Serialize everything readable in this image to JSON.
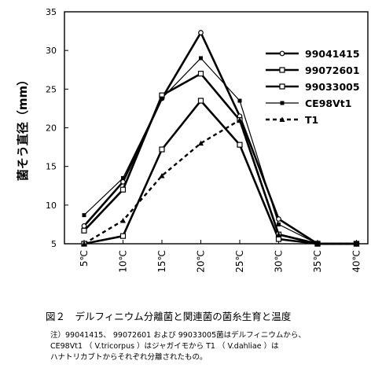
{
  "chart_data": {
    "type": "line",
    "ylabel": "菌そう直径（mm）",
    "categories": [
      "5℃",
      "10℃",
      "15℃",
      "20℃",
      "25℃",
      "30℃",
      "35℃",
      "40℃"
    ],
    "ylim": [
      5,
      35
    ],
    "yticks": [
      5,
      10,
      15,
      20,
      25,
      30,
      35
    ],
    "grid": false,
    "legend_position": "right",
    "series": [
      {
        "name": "99041415",
        "values": [
          7.3,
          13.0,
          23.8,
          32.3,
          21.5,
          8.2,
          5.0,
          5.0
        ],
        "marker": "circle-open",
        "style": "solid-bold"
      },
      {
        "name": "99072601",
        "values": [
          5.0,
          6.0,
          17.2,
          23.5,
          17.8,
          5.6,
          5.0,
          5.0
        ],
        "marker": "square-open",
        "style": "solid-bold"
      },
      {
        "name": "99033005",
        "values": [
          6.7,
          12.0,
          24.2,
          27.0,
          21.0,
          6.2,
          5.0,
          5.0
        ],
        "marker": "square-open",
        "style": "solid-bold"
      },
      {
        "name": "CE98Vt1",
        "values": [
          8.7,
          13.5,
          23.8,
          29.0,
          23.5,
          7.5,
          5.0,
          5.0
        ],
        "marker": "square-filled",
        "style": "solid-thin"
      },
      {
        "name": "T1",
        "values": [
          5.0,
          8.0,
          13.8,
          18.0,
          21.0,
          6.2,
          5.0,
          5.0
        ],
        "marker": "triangle-filled",
        "style": "dashed"
      }
    ]
  },
  "caption": "図２　デルフィニウム分離菌と関連菌の菌糸生育と温度",
  "notes": {
    "line1": "注）99041415、 99072601 および 99033005菌はデルフィニウムから、",
    "line2": "CE98Vt1 （ V.tricorpus ）はジャガイモから T1 （ V.dahliae ）は",
    "line3": "ハナトリカブトからそれぞれ分離されたもの。"
  }
}
